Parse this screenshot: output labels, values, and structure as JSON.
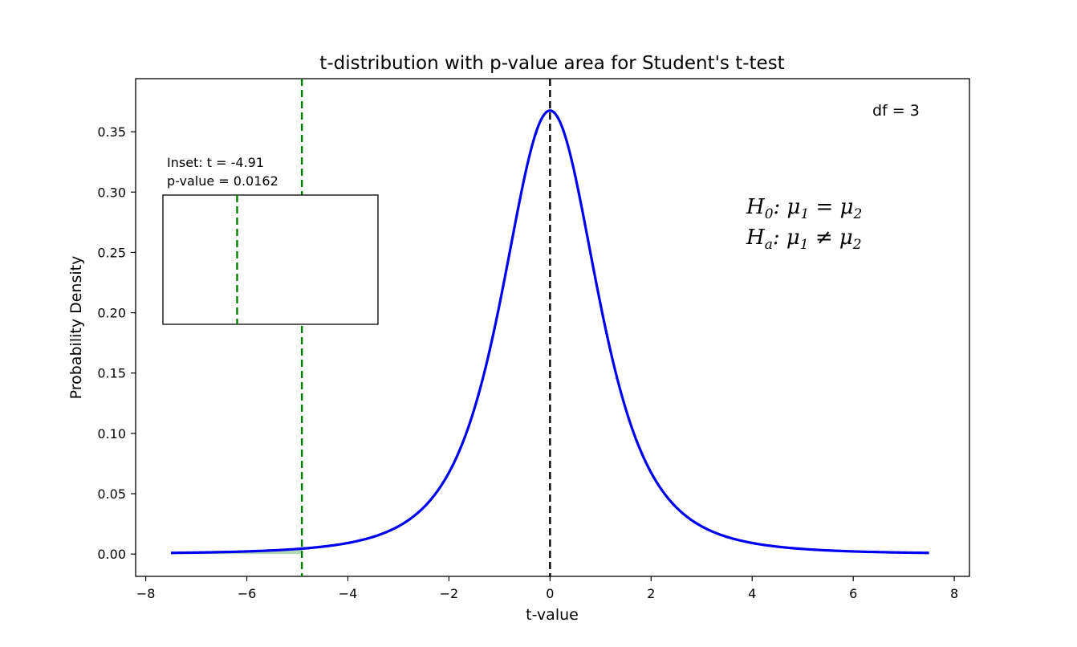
{
  "chart_data": {
    "type": "line",
    "title": "t-distribution with p-value area for Student's t-test",
    "xlabel": "t-value",
    "ylabel": "Probability Density",
    "xlim": [
      -8.2,
      8.3
    ],
    "ylim": [
      -0.0185,
      0.394
    ],
    "xticks": [
      -8,
      -6,
      -4,
      -2,
      0,
      2,
      4,
      6,
      8
    ],
    "xtick_labels": [
      "−8",
      "−6",
      "−4",
      "−2",
      "0",
      "2",
      "4",
      "6",
      "8"
    ],
    "yticks": [
      0.0,
      0.05,
      0.1,
      0.15,
      0.2,
      0.25,
      0.3,
      0.35
    ],
    "ytick_labels": [
      "0.00",
      "0.05",
      "0.10",
      "0.15",
      "0.20",
      "0.25",
      "0.30",
      "0.35"
    ],
    "grid": false,
    "series": [
      {
        "distribution": "Student t",
        "df": 3,
        "x_range": [
          -7.5,
          7.5
        ],
        "color": "#0000ee"
      }
    ],
    "shaded_region": {
      "from": -7.5,
      "to": -4.91,
      "color": "#2e8b2e"
    },
    "vlines": [
      {
        "x": -4.91,
        "color": "#008000",
        "style": "dashed"
      },
      {
        "x": 0,
        "color": "#000000",
        "style": "dashed"
      }
    ],
    "annotations": {
      "df": "df = 3",
      "h0_main": "H",
      "h0_sub": "0",
      "h0_rest": ": μ",
      "h0_sub2": "1",
      "h0_eq": " = μ",
      "h0_sub3": "2",
      "ha_main": "H",
      "ha_sub": "a",
      "ha_rest": ": μ",
      "ha_sub2": "1",
      "ha_neq": " ≠ μ",
      "ha_sub3": "2"
    },
    "inset": {
      "line1": "Inset: t = -4.91",
      "line2": "p-value = 0.0162",
      "xlim": [
        -5.6,
        -3.6
      ],
      "curve_color": "#008000",
      "fill_color": "#2e8b2e",
      "vline_x": -4.91
    }
  }
}
